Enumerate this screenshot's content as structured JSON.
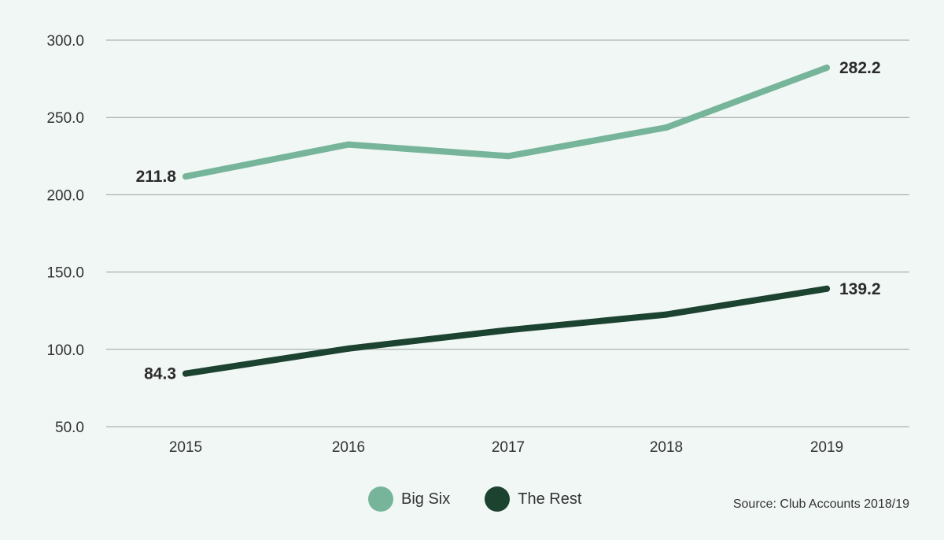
{
  "chart_data": {
    "type": "line",
    "categories": [
      "2015",
      "2016",
      "2017",
      "2018",
      "2019"
    ],
    "ylim": [
      50,
      300
    ],
    "yticks": [
      50,
      100,
      150,
      200,
      250,
      300
    ],
    "ytick_labels": [
      "50.0",
      "100.0",
      "150.0",
      "200.0",
      "250.0",
      "300.0"
    ],
    "grid": true,
    "legend_position": "bottom-center",
    "series": [
      {
        "name": "Big Six",
        "color": "#77b59b",
        "values": [
          211.8,
          232.5,
          225.0,
          243.5,
          282.2
        ],
        "labels": [
          "211.8",
          "",
          "",
          "",
          "282.2"
        ]
      },
      {
        "name": "The Rest",
        "color": "#1c4230",
        "values": [
          84.3,
          100.5,
          112.5,
          122.5,
          139.2
        ],
        "labels": [
          "84.3",
          "",
          "",
          "",
          "139.2"
        ]
      }
    ],
    "source": "Source: Club Accounts 2018/19"
  }
}
